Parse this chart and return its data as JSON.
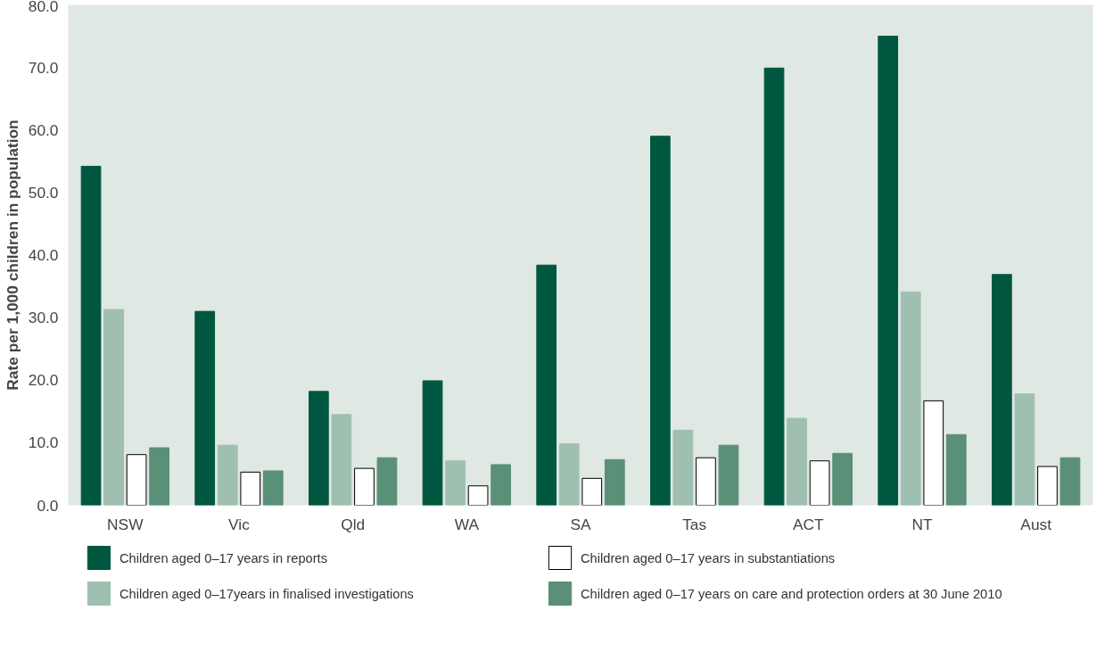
{
  "chart_data": {
    "type": "bar",
    "ylabel": "Rate per 1,000 children in population",
    "categories": [
      "NSW",
      "Vic",
      "Qld",
      "WA",
      "SA",
      "Tas",
      "ACT",
      "NT",
      "Aust"
    ],
    "series": [
      {
        "name": "Children aged 0–17 years in reports",
        "color": "#00573f",
        "values": [
          54.2,
          31.0,
          18.2,
          19.9,
          38.4,
          59.0,
          69.9,
          75.0,
          36.9
        ]
      },
      {
        "name": "Children aged 0–17years in finalised investigations",
        "color": "#9fbfb1",
        "values": [
          31.3,
          9.6,
          14.5,
          7.1,
          9.8,
          12.0,
          13.9,
          34.1,
          17.8
        ]
      },
      {
        "name": "Children aged 0–17 years in substantiations",
        "color": "#ffffff",
        "values": [
          8.1,
          5.3,
          5.9,
          3.1,
          4.3,
          7.6,
          7.1,
          16.7,
          6.2
        ]
      },
      {
        "name": "Children aged 0–17 years on care and protection orders at 30 June 2010",
        "color": "#5a8f78",
        "values": [
          9.2,
          5.5,
          7.6,
          6.5,
          7.3,
          9.6,
          8.3,
          11.3,
          7.6
        ]
      }
    ],
    "ylim": [
      0,
      80
    ],
    "yticks": [
      {
        "value": 0,
        "label": "0.0"
      },
      {
        "value": 10,
        "label": "10.0"
      },
      {
        "value": 20,
        "label": "20.0"
      },
      {
        "value": 30,
        "label": "30.0"
      },
      {
        "value": 40,
        "label": "40.0"
      },
      {
        "value": 50,
        "label": "50.0"
      },
      {
        "value": 60,
        "label": "60.0"
      },
      {
        "value": 70,
        "label": "70.0"
      },
      {
        "value": 80,
        "label": "80.0"
      }
    ],
    "grid": false,
    "legend": "bottom"
  }
}
